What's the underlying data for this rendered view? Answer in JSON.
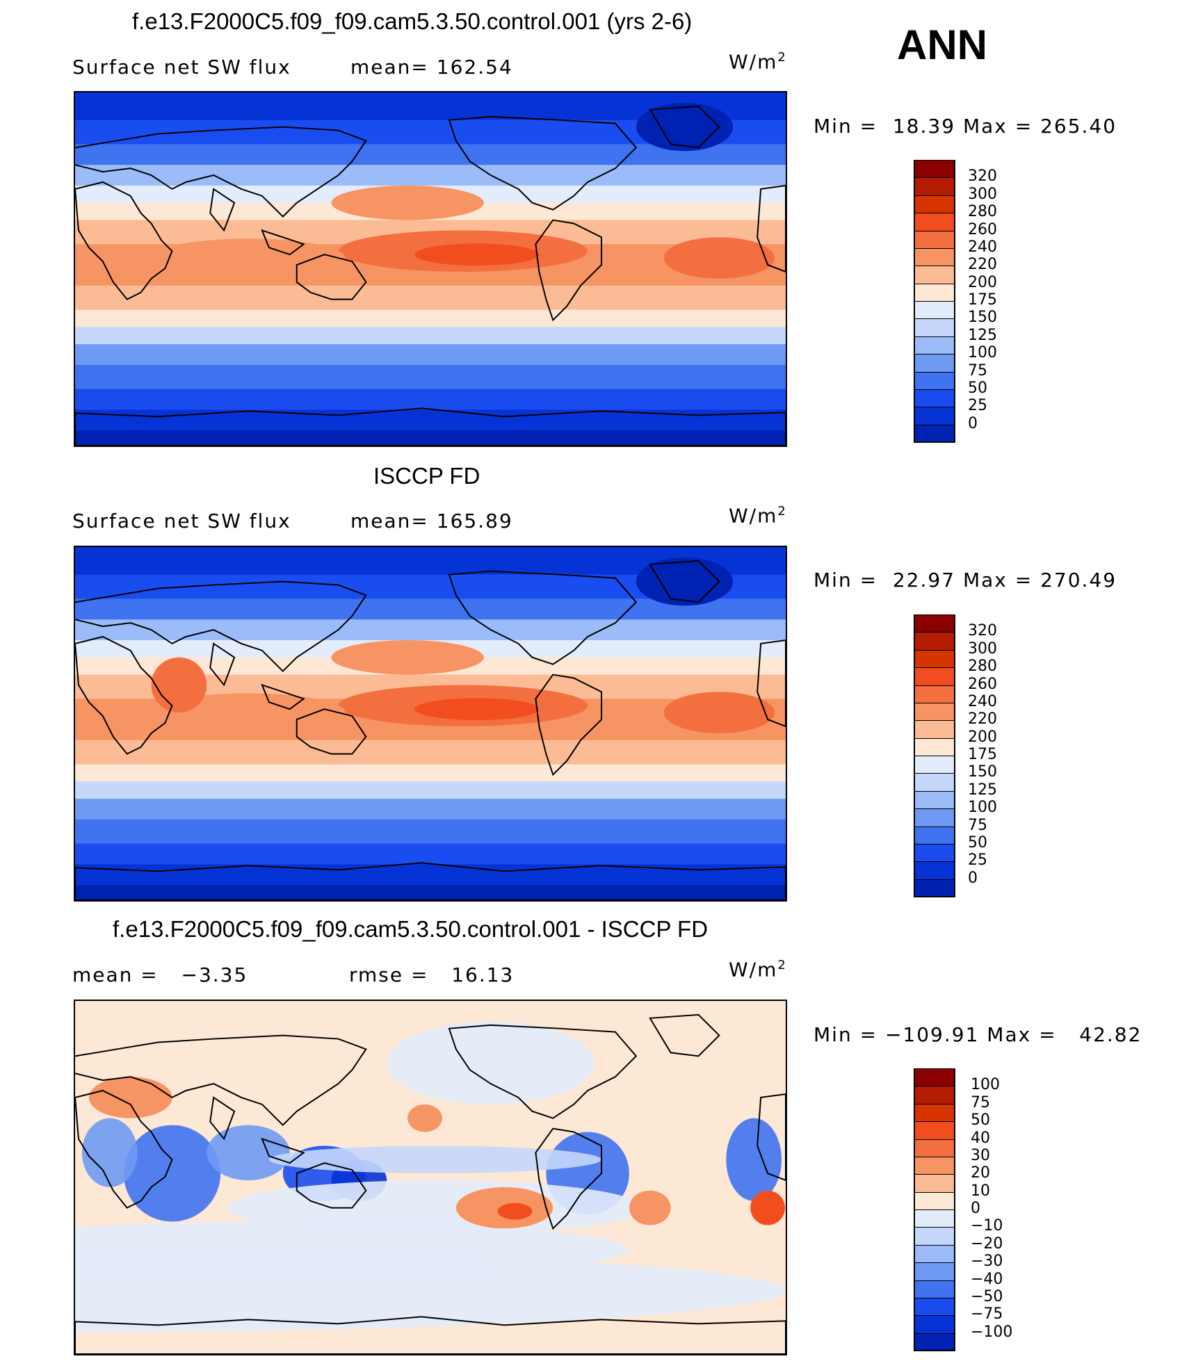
{
  "season": "ANN",
  "units_text": "W/m",
  "units_sup": "2",
  "panels": [
    {
      "title": "f.e13.F2000C5.f09_f09.cam5.3.50.control.001 (yrs 2-6)",
      "left_label": "Surface net SW flux",
      "stat_label": "mean=",
      "stat_value": "162.54",
      "minmax": {
        "min_label": "Min =",
        "min": "18.39",
        "max_label": "Max =",
        "max": "265.40"
      },
      "colorbar": {
        "labels": [
          "320",
          "300",
          "280",
          "260",
          "240",
          "220",
          "200",
          "175",
          "150",
          "125",
          "100",
          "75",
          "50",
          "25",
          "0"
        ],
        "colors": [
          "#8b0000",
          "#b31c00",
          "#d63500",
          "#f24d1e",
          "#f46f3f",
          "#f79463",
          "#fbbb95",
          "#fde7d5",
          "#e3ecfb",
          "#c5d7fb",
          "#9bbcf8",
          "#6f9af3",
          "#3f73f0",
          "#1a4df0",
          "#0633d6",
          "#0022b2"
        ]
      },
      "kind": "model"
    },
    {
      "title": "ISCCP FD",
      "left_label": "Surface net SW flux",
      "stat_label": "mean=",
      "stat_value": "165.89",
      "minmax": {
        "min_label": "Min =",
        "min": "22.97",
        "max_label": "Max =",
        "max": "270.49"
      },
      "colorbar": {
        "labels": [
          "320",
          "300",
          "280",
          "260",
          "240",
          "220",
          "200",
          "175",
          "150",
          "125",
          "100",
          "75",
          "50",
          "25",
          "0"
        ],
        "colors": [
          "#8b0000",
          "#b31c00",
          "#d63500",
          "#f24d1e",
          "#f46f3f",
          "#f79463",
          "#fbbb95",
          "#fde7d5",
          "#e3ecfb",
          "#c5d7fb",
          "#9bbcf8",
          "#6f9af3",
          "#3f73f0",
          "#1a4df0",
          "#0633d6",
          "#0022b2"
        ]
      },
      "kind": "obs"
    },
    {
      "title": "f.e13.F2000C5.f09_f09.cam5.3.50.control.001 - ISCCP FD",
      "left_label": "mean =",
      "left_value": "−3.35",
      "stat_label": "rmse =",
      "stat_value": "16.13",
      "minmax": {
        "min_label": "Min =",
        "min": "−109.91",
        "max_label": "Max =",
        "max": "42.82"
      },
      "colorbar": {
        "labels": [
          "100",
          "75",
          "50",
          "40",
          "30",
          "20",
          "10",
          "0",
          "−10",
          "−20",
          "−30",
          "−40",
          "−50",
          "−75",
          "−100"
        ],
        "colors": [
          "#8b0000",
          "#b31c00",
          "#d63500",
          "#f24d1e",
          "#f46f3f",
          "#f79463",
          "#fbbb95",
          "#fde7d5",
          "#e3ecfb",
          "#c5d7fb",
          "#9bbcf8",
          "#6f9af3",
          "#3f73f0",
          "#1a4df0",
          "#0633d6",
          "#0022b2"
        ]
      },
      "kind": "diff"
    }
  ]
}
